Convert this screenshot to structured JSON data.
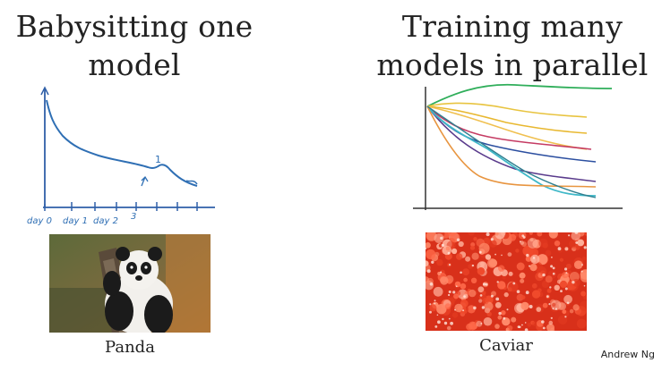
{
  "left": {
    "title_line1": "Babysitting one",
    "title_line2": "model",
    "axis_labels": [
      "day 0",
      "day 1",
      "day 2",
      "3"
    ],
    "note": "1",
    "caption": "Panda",
    "curve_color": "#2f6fb4"
  },
  "right": {
    "title_line1": "Training many",
    "title_line2": "models in parallel",
    "caption": "Caviar",
    "curve_colors": [
      "#2fae5a",
      "#e8b830",
      "#c53b63",
      "#2c4fa0",
      "#5a3b8c",
      "#3fb8c8",
      "#e89540"
    ]
  },
  "footer": {
    "author": "Andrew Ng"
  }
}
